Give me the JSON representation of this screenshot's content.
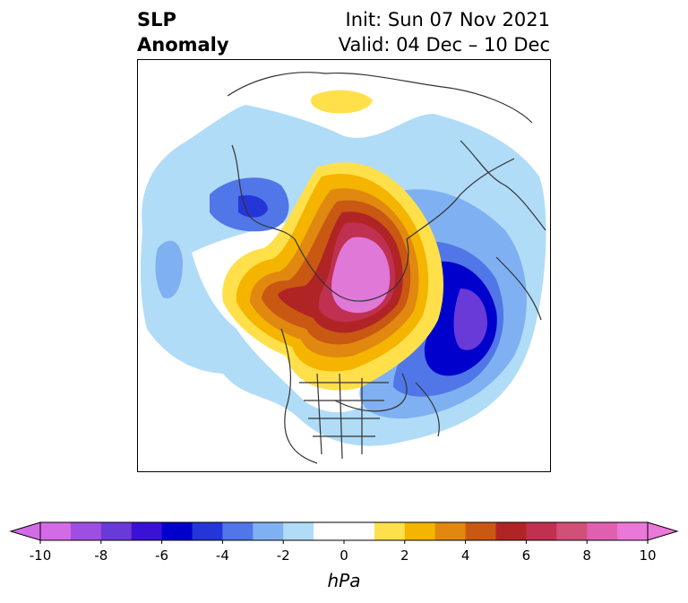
{
  "title": {
    "variable": "SLP",
    "variable2": "Anomaly",
    "init": "Init: Sun 07 Nov 2021",
    "valid": "Valid: 04 Dec – 10 Dec"
  },
  "colorbar": {
    "units": "hPa",
    "ticks": [
      "-10",
      "-8",
      "-6",
      "-4",
      "-2",
      "0",
      "2",
      "4",
      "6",
      "8",
      "10"
    ],
    "colors": [
      "#d36be6",
      "#9f4fe0",
      "#6a3ad8",
      "#3a12d6",
      "#0000cd",
      "#2536d8",
      "#5076e8",
      "#7fb0f2",
      "#b0dcf8",
      "#ffffff",
      "#ffffff",
      "#ffe04a",
      "#f4b400",
      "#e08810",
      "#c85812",
      "#b02426",
      "#c03050",
      "#d05078",
      "#e060b0",
      "#ea78d8"
    ]
  }
}
